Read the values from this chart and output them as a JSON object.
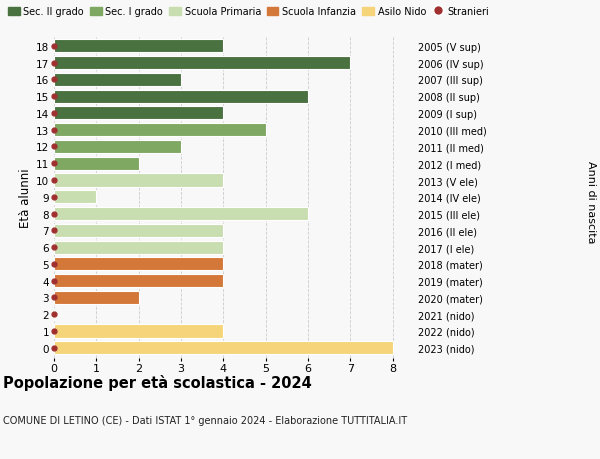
{
  "ages": [
    18,
    17,
    16,
    15,
    14,
    13,
    12,
    11,
    10,
    9,
    8,
    7,
    6,
    5,
    4,
    3,
    2,
    1,
    0
  ],
  "right_labels": [
    "2005 (V sup)",
    "2006 (IV sup)",
    "2007 (III sup)",
    "2008 (II sup)",
    "2009 (I sup)",
    "2010 (III med)",
    "2011 (II med)",
    "2012 (I med)",
    "2013 (V ele)",
    "2014 (IV ele)",
    "2015 (III ele)",
    "2016 (II ele)",
    "2017 (I ele)",
    "2018 (mater)",
    "2019 (mater)",
    "2020 (mater)",
    "2021 (nido)",
    "2022 (nido)",
    "2023 (nido)"
  ],
  "values": [
    4,
    7,
    3,
    6,
    4,
    5,
    3,
    2,
    4,
    1,
    6,
    4,
    4,
    4,
    4,
    2,
    0,
    4,
    8
  ],
  "colors": [
    "#4a7140",
    "#4a7140",
    "#4a7140",
    "#4a7140",
    "#4a7140",
    "#7fa863",
    "#7fa863",
    "#7fa863",
    "#c8ddb0",
    "#c8ddb0",
    "#c8ddb0",
    "#c8ddb0",
    "#c8ddb0",
    "#d4783a",
    "#d4783a",
    "#d4783a",
    "#f5d47a",
    "#f5d47a",
    "#f5d47a"
  ],
  "stranieri_color": "#a03030",
  "background_color": "#f8f8f8",
  "grid_color": "#cccccc",
  "legend_items": [
    {
      "label": "Sec. II grado",
      "color": "#4a7140"
    },
    {
      "label": "Sec. I grado",
      "color": "#7fa863"
    },
    {
      "label": "Scuola Primaria",
      "color": "#c8ddb0"
    },
    {
      "label": "Scuola Infanzia",
      "color": "#d4783a"
    },
    {
      "label": "Asilo Nido",
      "color": "#f5d47a"
    },
    {
      "label": "Stranieri",
      "color": "#a03030"
    }
  ],
  "title": "Popolazione per età scolastica - 2024",
  "subtitle": "COMUNE DI LETINO (CE) - Dati ISTAT 1° gennaio 2024 - Elaborazione TUTTITALIA.IT",
  "ylabel_left": "Età alunni",
  "ylabel_right": "Anni di nascita",
  "xlim": [
    0,
    8.5
  ],
  "bar_height": 0.78
}
